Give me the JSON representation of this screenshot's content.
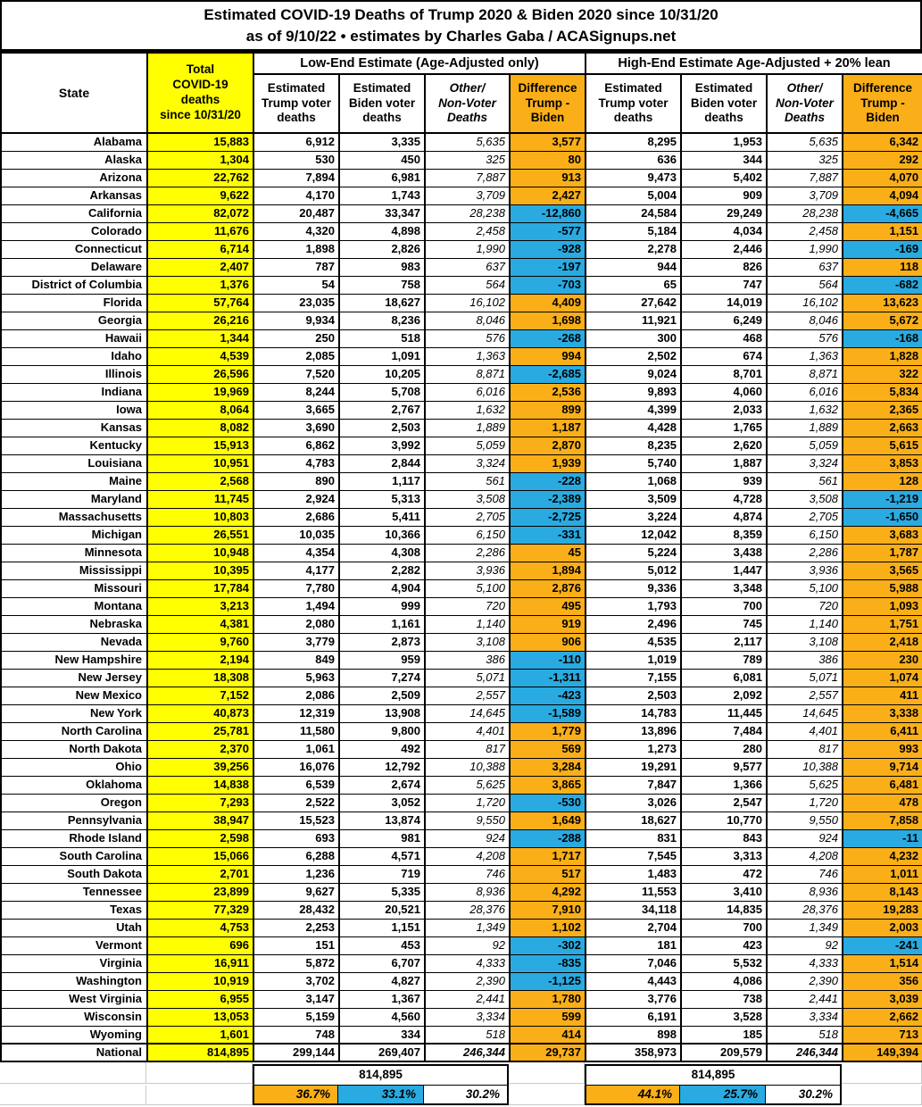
{
  "colors": {
    "orange": "#FAAF19",
    "blue": "#29ABE2",
    "yellow": "#FFFF00",
    "grid_grey": "#C9C9C9"
  },
  "title": {
    "line1": "Estimated COVID-19 Deaths of Trump 2020 & Biden 2020 since 10/31/20",
    "line2": "as of 9/10/22 • estimates by Charles Gaba / ACASignups.net"
  },
  "chart_data": {
    "type": "table",
    "title": "Estimated COVID-19 Deaths of Trump 2020 & Biden 2020 since 10/31/20",
    "subtitle": "as of 9/10/22 • estimates by Charles Gaba / ACASignups.net",
    "state_header": "State",
    "total_header": "Total\nCOVID-19\ndeaths\nsince 10/31/20",
    "groups": [
      {
        "label": "Low-End Estimate (Age-Adjusted only)"
      },
      {
        "label": "High-End Estimate Age-Adjusted + 20% lean"
      }
    ],
    "sub_headers": [
      {
        "text": "Estimated\nTrump voter\ndeaths",
        "kind": "num"
      },
      {
        "text": "Estimated\nBiden voter\ndeaths",
        "kind": "num"
      },
      {
        "text": "Other/\nNon-Voter\nDeaths",
        "kind": "oth"
      },
      {
        "text": "Difference\nTrump -\nBiden",
        "kind": "diff"
      }
    ],
    "columns": [
      "State",
      "Total COVID-19 deaths since 10/31/20",
      "Low Estimated Trump voter deaths",
      "Low Estimated Biden voter deaths",
      "Low Other/Non-Voter Deaths",
      "Low Difference Trump - Biden",
      "High Estimated Trump voter deaths",
      "High Estimated Biden voter deaths",
      "High Other/Non-Voter Deaths",
      "High Difference Trump - Biden"
    ],
    "rows": [
      [
        "Alabama",
        "15,883",
        "6,912",
        "3,335",
        "5,635",
        "3,577",
        "8,295",
        "1,953",
        "5,635",
        "6,342"
      ],
      [
        "Alaska",
        "1,304",
        "530",
        "450",
        "325",
        "80",
        "636",
        "344",
        "325",
        "292"
      ],
      [
        "Arizona",
        "22,762",
        "7,894",
        "6,981",
        "7,887",
        "913",
        "9,473",
        "5,402",
        "7,887",
        "4,070"
      ],
      [
        "Arkansas",
        "9,622",
        "4,170",
        "1,743",
        "3,709",
        "2,427",
        "5,004",
        "909",
        "3,709",
        "4,094"
      ],
      [
        "California",
        "82,072",
        "20,487",
        "33,347",
        "28,238",
        "-12,860",
        "24,584",
        "29,249",
        "28,238",
        "-4,665"
      ],
      [
        "Colorado",
        "11,676",
        "4,320",
        "4,898",
        "2,458",
        "-577",
        "5,184",
        "4,034",
        "2,458",
        "1,151"
      ],
      [
        "Connecticut",
        "6,714",
        "1,898",
        "2,826",
        "1,990",
        "-928",
        "2,278",
        "2,446",
        "1,990",
        "-169"
      ],
      [
        "Delaware",
        "2,407",
        "787",
        "983",
        "637",
        "-197",
        "944",
        "826",
        "637",
        "118"
      ],
      [
        "District of Columbia",
        "1,376",
        "54",
        "758",
        "564",
        "-703",
        "65",
        "747",
        "564",
        "-682"
      ],
      [
        "Florida",
        "57,764",
        "23,035",
        "18,627",
        "16,102",
        "4,409",
        "27,642",
        "14,019",
        "16,102",
        "13,623"
      ],
      [
        "Georgia",
        "26,216",
        "9,934",
        "8,236",
        "8,046",
        "1,698",
        "11,921",
        "6,249",
        "8,046",
        "5,672"
      ],
      [
        "Hawaii",
        "1,344",
        "250",
        "518",
        "576",
        "-268",
        "300",
        "468",
        "576",
        "-168"
      ],
      [
        "Idaho",
        "4,539",
        "2,085",
        "1,091",
        "1,363",
        "994",
        "2,502",
        "674",
        "1,363",
        "1,828"
      ],
      [
        "Illinois",
        "26,596",
        "7,520",
        "10,205",
        "8,871",
        "-2,685",
        "9,024",
        "8,701",
        "8,871",
        "322"
      ],
      [
        "Indiana",
        "19,969",
        "8,244",
        "5,708",
        "6,016",
        "2,536",
        "9,893",
        "4,060",
        "6,016",
        "5,834"
      ],
      [
        "Iowa",
        "8,064",
        "3,665",
        "2,767",
        "1,632",
        "899",
        "4,399",
        "2,033",
        "1,632",
        "2,365"
      ],
      [
        "Kansas",
        "8,082",
        "3,690",
        "2,503",
        "1,889",
        "1,187",
        "4,428",
        "1,765",
        "1,889",
        "2,663"
      ],
      [
        "Kentucky",
        "15,913",
        "6,862",
        "3,992",
        "5,059",
        "2,870",
        "8,235",
        "2,620",
        "5,059",
        "5,615"
      ],
      [
        "Louisiana",
        "10,951",
        "4,783",
        "2,844",
        "3,324",
        "1,939",
        "5,740",
        "1,887",
        "3,324",
        "3,853"
      ],
      [
        "Maine",
        "2,568",
        "890",
        "1,117",
        "561",
        "-228",
        "1,068",
        "939",
        "561",
        "128"
      ],
      [
        "Maryland",
        "11,745",
        "2,924",
        "5,313",
        "3,508",
        "-2,389",
        "3,509",
        "4,728",
        "3,508",
        "-1,219"
      ],
      [
        "Massachusetts",
        "10,803",
        "2,686",
        "5,411",
        "2,705",
        "-2,725",
        "3,224",
        "4,874",
        "2,705",
        "-1,650"
      ],
      [
        "Michigan",
        "26,551",
        "10,035",
        "10,366",
        "6,150",
        "-331",
        "12,042",
        "8,359",
        "6,150",
        "3,683"
      ],
      [
        "Minnesota",
        "10,948",
        "4,354",
        "4,308",
        "2,286",
        "45",
        "5,224",
        "3,438",
        "2,286",
        "1,787"
      ],
      [
        "Mississippi",
        "10,395",
        "4,177",
        "2,282",
        "3,936",
        "1,894",
        "5,012",
        "1,447",
        "3,936",
        "3,565"
      ],
      [
        "Missouri",
        "17,784",
        "7,780",
        "4,904",
        "5,100",
        "2,876",
        "9,336",
        "3,348",
        "5,100",
        "5,988"
      ],
      [
        "Montana",
        "3,213",
        "1,494",
        "999",
        "720",
        "495",
        "1,793",
        "700",
        "720",
        "1,093"
      ],
      [
        "Nebraska",
        "4,381",
        "2,080",
        "1,161",
        "1,140",
        "919",
        "2,496",
        "745",
        "1,140",
        "1,751"
      ],
      [
        "Nevada",
        "9,760",
        "3,779",
        "2,873",
        "3,108",
        "906",
        "4,535",
        "2,117",
        "3,108",
        "2,418"
      ],
      [
        "New Hampshire",
        "2,194",
        "849",
        "959",
        "386",
        "-110",
        "1,019",
        "789",
        "386",
        "230"
      ],
      [
        "New Jersey",
        "18,308",
        "5,963",
        "7,274",
        "5,071",
        "-1,311",
        "7,155",
        "6,081",
        "5,071",
        "1,074"
      ],
      [
        "New Mexico",
        "7,152",
        "2,086",
        "2,509",
        "2,557",
        "-423",
        "2,503",
        "2,092",
        "2,557",
        "411"
      ],
      [
        "New York",
        "40,873",
        "12,319",
        "13,908",
        "14,645",
        "-1,589",
        "14,783",
        "11,445",
        "14,645",
        "3,338"
      ],
      [
        "North Carolina",
        "25,781",
        "11,580",
        "9,800",
        "4,401",
        "1,779",
        "13,896",
        "7,484",
        "4,401",
        "6,411"
      ],
      [
        "North Dakota",
        "2,370",
        "1,061",
        "492",
        "817",
        "569",
        "1,273",
        "280",
        "817",
        "993"
      ],
      [
        "Ohio",
        "39,256",
        "16,076",
        "12,792",
        "10,388",
        "3,284",
        "19,291",
        "9,577",
        "10,388",
        "9,714"
      ],
      [
        "Oklahoma",
        "14,838",
        "6,539",
        "2,674",
        "5,625",
        "3,865",
        "7,847",
        "1,366",
        "5,625",
        "6,481"
      ],
      [
        "Oregon",
        "7,293",
        "2,522",
        "3,052",
        "1,720",
        "-530",
        "3,026",
        "2,547",
        "1,720",
        "478"
      ],
      [
        "Pennsylvania",
        "38,947",
        "15,523",
        "13,874",
        "9,550",
        "1,649",
        "18,627",
        "10,770",
        "9,550",
        "7,858"
      ],
      [
        "Rhode Island",
        "2,598",
        "693",
        "981",
        "924",
        "-288",
        "831",
        "843",
        "924",
        "-11"
      ],
      [
        "South Carolina",
        "15,066",
        "6,288",
        "4,571",
        "4,208",
        "1,717",
        "7,545",
        "3,313",
        "4,208",
        "4,232"
      ],
      [
        "South Dakota",
        "2,701",
        "1,236",
        "719",
        "746",
        "517",
        "1,483",
        "472",
        "746",
        "1,011"
      ],
      [
        "Tennessee",
        "23,899",
        "9,627",
        "5,335",
        "8,936",
        "4,292",
        "11,553",
        "3,410",
        "8,936",
        "8,143"
      ],
      [
        "Texas",
        "77,329",
        "28,432",
        "20,521",
        "28,376",
        "7,910",
        "34,118",
        "14,835",
        "28,376",
        "19,283"
      ],
      [
        "Utah",
        "4,753",
        "2,253",
        "1,151",
        "1,349",
        "1,102",
        "2,704",
        "700",
        "1,349",
        "2,003"
      ],
      [
        "Vermont",
        "696",
        "151",
        "453",
        "92",
        "-302",
        "181",
        "423",
        "92",
        "-241"
      ],
      [
        "Virginia",
        "16,911",
        "5,872",
        "6,707",
        "4,333",
        "-835",
        "7,046",
        "5,532",
        "4,333",
        "1,514"
      ],
      [
        "Washington",
        "10,919",
        "3,702",
        "4,827",
        "2,390",
        "-1,125",
        "4,443",
        "4,086",
        "2,390",
        "356"
      ],
      [
        "West Virginia",
        "6,955",
        "3,147",
        "1,367",
        "2,441",
        "1,780",
        "3,776",
        "738",
        "2,441",
        "3,039"
      ],
      [
        "Wisconsin",
        "13,053",
        "5,159",
        "4,560",
        "3,334",
        "599",
        "6,191",
        "3,528",
        "3,334",
        "2,662"
      ],
      [
        "Wyoming",
        "1,601",
        "748",
        "334",
        "518",
        "414",
        "898",
        "185",
        "518",
        "713"
      ]
    ],
    "national_row": [
      "National",
      "814,895",
      "299,144",
      "269,407",
      "246,344",
      "29,737",
      "358,973",
      "209,579",
      "246,344",
      "149,394"
    ],
    "footer": {
      "low_total": "814,895",
      "high_total": "814,895",
      "low_pcts": [
        "36.7%",
        "33.1%",
        "30.2%"
      ],
      "high_pcts": [
        "44.1%",
        "25.7%",
        "30.2%"
      ]
    }
  }
}
